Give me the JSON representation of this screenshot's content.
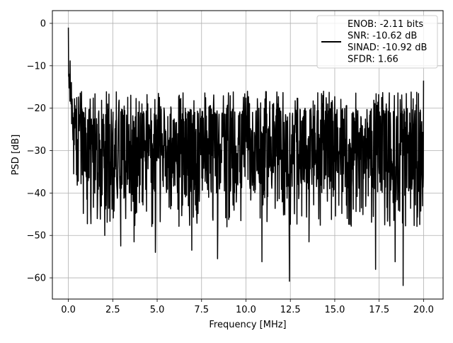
{
  "chart_data": {
    "type": "line",
    "title": "",
    "xlabel": "Frequency [MHz]",
    "ylabel": "PSD [dB]",
    "xlim": [
      -0.9,
      21.1
    ],
    "ylim": [
      -65,
      3
    ],
    "xticks": [
      0.0,
      2.5,
      5.0,
      7.5,
      10.0,
      12.5,
      15.0,
      17.5,
      20.0
    ],
    "xtick_labels": [
      "0.0",
      "2.5",
      "5.0",
      "7.5",
      "10.0",
      "12.5",
      "15.0",
      "17.5",
      "20.0"
    ],
    "yticks": [
      0,
      -10,
      -20,
      -30,
      -40,
      -50,
      -60
    ],
    "ytick_labels": [
      "0",
      "−10",
      "−20",
      "−30",
      "−40",
      "−50",
      "−60"
    ],
    "grid": true,
    "legend_position": "top-right",
    "series": [
      {
        "name": "ENOB: -2.11 bits\nSNR: -10.62 dB\nSINAD: -10.92 dB\nSFDR: 1.66",
        "color": "#000000",
        "x_start": 0.0,
        "x_end": 20.0,
        "noise_floor_db": -30,
        "noise_upper_db": -20,
        "noise_lower_db": -40,
        "notable_points": [
          {
            "x": 0.0,
            "y": -1.0
          },
          {
            "x": 0.05,
            "y": -12
          },
          {
            "x": 0.15,
            "y": -19
          },
          {
            "x": 0.3,
            "y": -35.5
          },
          {
            "x": 2.05,
            "y": -50
          },
          {
            "x": 2.95,
            "y": -52.5
          },
          {
            "x": 3.7,
            "y": -51.5
          },
          {
            "x": 4.9,
            "y": -54
          },
          {
            "x": 6.95,
            "y": -53.5
          },
          {
            "x": 8.4,
            "y": -55.5
          },
          {
            "x": 10.9,
            "y": -56.2
          },
          {
            "x": 12.45,
            "y": -60.8
          },
          {
            "x": 13.55,
            "y": -51.5
          },
          {
            "x": 17.3,
            "y": -58
          },
          {
            "x": 18.4,
            "y": -56.2
          },
          {
            "x": 18.85,
            "y": -61.8
          },
          {
            "x": 20.0,
            "y": -13.5
          }
        ]
      }
    ],
    "legend_lines": [
      "ENOB: -2.11 bits",
      "SNR: -10.62 dB",
      "SINAD: -10.92 dB",
      "SFDR: 1.66"
    ]
  }
}
